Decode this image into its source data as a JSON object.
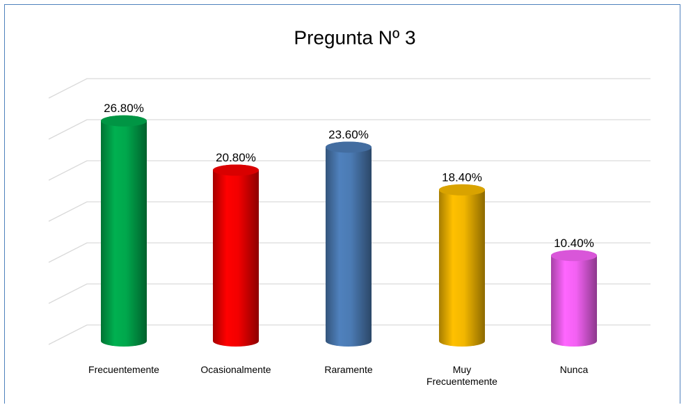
{
  "chart_data": {
    "type": "bar",
    "title": "Pregunta Nº 3",
    "categories": [
      "Frecuentemente",
      "Ocasionalmente",
      "Raramente",
      "Muy Frecuentemente",
      "Nunca"
    ],
    "values": [
      26.8,
      20.8,
      23.6,
      18.4,
      10.4
    ],
    "value_labels": [
      "26.80%",
      "20.80%",
      "23.60%",
      "18.40%",
      "10.40%"
    ],
    "colors": [
      "#00b050",
      "#ff0000",
      "#4f81bd",
      "#ffc000",
      "#ff66ff"
    ],
    "ylim": [
      0,
      30
    ],
    "yticks": [
      0,
      5,
      10,
      15,
      20,
      25,
      30
    ],
    "grid": true
  }
}
